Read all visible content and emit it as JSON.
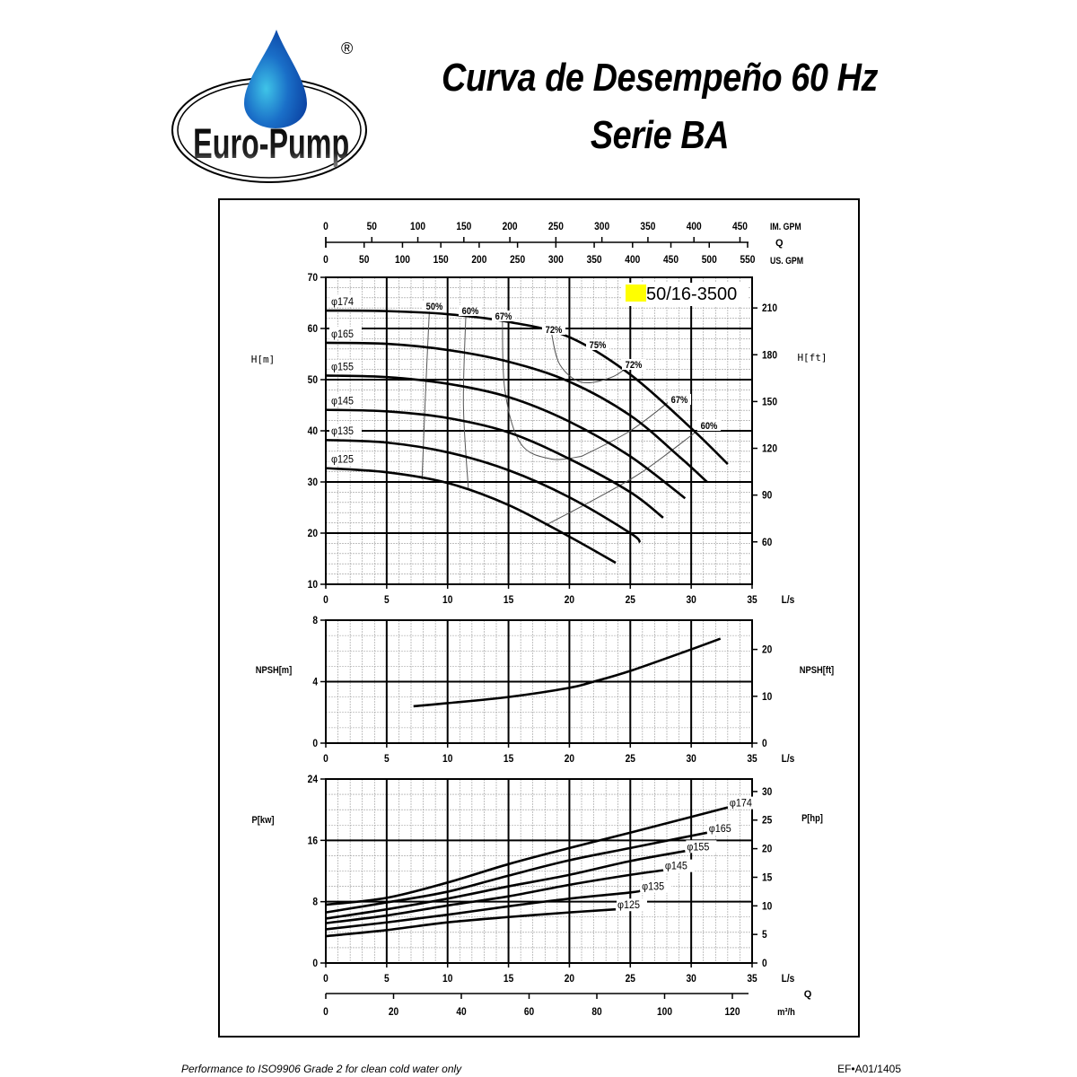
{
  "header": {
    "title_line1": "Curva de Desempeño 60 Hz",
    "title_line2": "Serie BA",
    "logo_text": "Euro-Pump",
    "registered_mark": "®"
  },
  "model_label": "50/16-3500",
  "model_highlight_color": "#ffff00",
  "footer": {
    "note": "Performance to ISO9906 Grade 2 for clean cold water only",
    "code": "EF•A01/1405"
  },
  "axes": {
    "top_im_gpm": {
      "label": "IM. GPM",
      "ticks": [
        "0",
        "50",
        "100",
        "150",
        "200",
        "250",
        "300",
        "350",
        "400",
        "450"
      ]
    },
    "top_q_label": "Q",
    "top_us_gpm": {
      "label": "US. GPM",
      "ticks": [
        "0",
        "50",
        "100",
        "150",
        "200",
        "250",
        "300",
        "350",
        "400",
        "450",
        "500",
        "550"
      ]
    },
    "flow_ls": {
      "label": "L/s",
      "ticks": [
        "0",
        "5",
        "10",
        "15",
        "20",
        "25",
        "30",
        "35"
      ]
    },
    "bottom_m3h": {
      "label": "m³/h",
      "q_label": "Q",
      "ticks": [
        "0",
        "20",
        "40",
        "60",
        "80",
        "100",
        "120"
      ]
    },
    "head_m": {
      "label": "H[m]",
      "ticks": [
        "10",
        "20",
        "30",
        "40",
        "50",
        "60",
        "70"
      ]
    },
    "head_ft": {
      "label": "H[ft]",
      "ticks": [
        "60",
        "90",
        "120",
        "150",
        "180",
        "210"
      ]
    },
    "npsh_m": {
      "label": "NPSH[m]",
      "ticks": [
        "0",
        "4",
        "8"
      ]
    },
    "npsh_ft": {
      "label": "NPSH[ft]",
      "ticks": [
        "0",
        "10",
        "20"
      ]
    },
    "power_kw": {
      "label": "P[kw]",
      "ticks": [
        "0",
        "8",
        "16",
        "24"
      ]
    },
    "power_hp": {
      "label": "P[hp]",
      "ticks": [
        "0",
        "5",
        "10",
        "15",
        "20",
        "25",
        "30"
      ]
    }
  },
  "chart_data": [
    {
      "type": "line",
      "title": "Head vs Flow",
      "xlabel": "Q [L/s]",
      "ylabel": "H [m]",
      "xlim": [
        0,
        35
      ],
      "ylim": [
        10,
        70
      ],
      "y2label": "H [ft]",
      "grid": true,
      "series": [
        {
          "name": "φ174",
          "x": [
            0,
            5,
            10,
            15,
            20,
            25,
            30,
            33
          ],
          "y": [
            63.5,
            63.4,
            62.8,
            61.3,
            58.3,
            51.0,
            40.5,
            33.5
          ]
        },
        {
          "name": "φ165",
          "x": [
            0,
            5,
            10,
            15,
            20,
            25,
            29,
            31.3
          ],
          "y": [
            57.2,
            57.0,
            55.8,
            53.5,
            49.6,
            43.0,
            35.0,
            30.0
          ]
        },
        {
          "name": "φ155",
          "x": [
            0,
            5,
            10,
            15,
            20,
            25,
            29.5
          ],
          "y": [
            50.8,
            50.5,
            49.2,
            46.6,
            41.8,
            35.0,
            26.8
          ]
        },
        {
          "name": "φ145",
          "x": [
            0,
            5,
            10,
            15,
            20,
            25,
            27.7
          ],
          "y": [
            44.1,
            43.8,
            42.5,
            39.7,
            34.5,
            28.0,
            23.0
          ]
        },
        {
          "name": "φ135",
          "x": [
            0,
            5,
            10,
            15,
            20,
            25,
            25.8
          ],
          "y": [
            38.2,
            37.7,
            35.8,
            32.3,
            27.0,
            20.0,
            18.2
          ]
        },
        {
          "name": "φ125",
          "x": [
            0,
            5,
            10,
            15,
            20,
            23.8
          ],
          "y": [
            32.7,
            31.9,
            29.8,
            25.5,
            19.3,
            14.2
          ]
        }
      ],
      "efficiency_curves": [
        {
          "name": "50%",
          "x": [
            8.5,
            8.2,
            7.9
          ],
          "y": [
            63.3,
            48.0,
            30.5
          ]
        },
        {
          "name": "60%",
          "x": [
            11.5,
            11.3,
            11.7
          ],
          "y": [
            62.8,
            45.0,
            28.8
          ]
        },
        {
          "name": "67% (left)",
          "x": [
            14.5,
            14.7,
            16.0,
            18.5,
            21.0
          ],
          "y": [
            62.0,
            48.0,
            37.5,
            34.5,
            35.0
          ]
        },
        {
          "name": "67% (right)",
          "x": [
            21.0,
            25.0,
            28.5
          ],
          "y": [
            35.0,
            40.0,
            46.3
          ]
        },
        {
          "name": "72% (left)",
          "x": [
            18.5,
            19.2,
            21.0,
            23.5,
            25.2
          ],
          "y": [
            59.5,
            53.0,
            49.5,
            50.5,
            53.3
          ]
        },
        {
          "name": "60% (right)",
          "x": [
            18.0,
            22.0,
            26.0,
            30.5
          ],
          "y": [
            21.5,
            26.5,
            32.0,
            40.0
          ]
        }
      ],
      "efficiency_labels": [
        "50%",
        "60%",
        "67%",
        "72%",
        "75%",
        "72%",
        "67%",
        "60%"
      ]
    },
    {
      "type": "line",
      "title": "NPSH vs Flow",
      "xlabel": "Q [L/s]",
      "ylabel": "NPSH [m]",
      "y2label": "NPSH [ft]",
      "xlim": [
        0,
        35
      ],
      "ylim": [
        0,
        8
      ],
      "grid": true,
      "series": [
        {
          "name": "NPSH",
          "x": [
            7.2,
            10,
            15,
            20,
            22,
            25,
            30,
            32.4
          ],
          "y": [
            2.4,
            2.6,
            3.0,
            3.6,
            4.0,
            4.7,
            6.1,
            6.8
          ]
        }
      ]
    },
    {
      "type": "line",
      "title": "Power vs Flow",
      "xlabel": "Q [L/s]",
      "ylabel": "P [kW]",
      "y2label": "P [hp]",
      "xlim": [
        0,
        35
      ],
      "ylim": [
        0,
        24
      ],
      "grid": true,
      "series": [
        {
          "name": "φ174",
          "x": [
            0,
            5,
            10,
            15,
            20,
            25,
            33
          ],
          "y": [
            7.6,
            8.5,
            10.5,
            12.9,
            15.0,
            17.0,
            20.3
          ]
        },
        {
          "name": "φ165",
          "x": [
            0,
            5,
            10,
            15,
            20,
            25,
            31.3
          ],
          "y": [
            6.6,
            7.9,
            9.3,
            11.4,
            13.4,
            15.0,
            17.0
          ]
        },
        {
          "name": "φ155",
          "x": [
            0,
            5,
            10,
            15,
            20,
            25,
            29.5
          ],
          "y": [
            5.8,
            7.0,
            8.4,
            10.0,
            11.5,
            13.3,
            14.6
          ]
        },
        {
          "name": "φ145",
          "x": [
            0,
            5,
            10,
            15,
            20,
            25,
            27.7
          ],
          "y": [
            5.2,
            6.2,
            7.5,
            8.7,
            10.2,
            11.5,
            12.1
          ]
        },
        {
          "name": "φ135",
          "x": [
            0,
            5,
            10,
            15,
            20,
            25,
            25.8
          ],
          "y": [
            4.4,
            5.3,
            6.3,
            7.4,
            8.4,
            9.2,
            9.4
          ]
        },
        {
          "name": "φ125",
          "x": [
            0,
            5,
            10,
            15,
            20,
            23.8
          ],
          "y": [
            3.5,
            4.3,
            5.3,
            6.0,
            6.6,
            7.0
          ]
        }
      ]
    }
  ]
}
